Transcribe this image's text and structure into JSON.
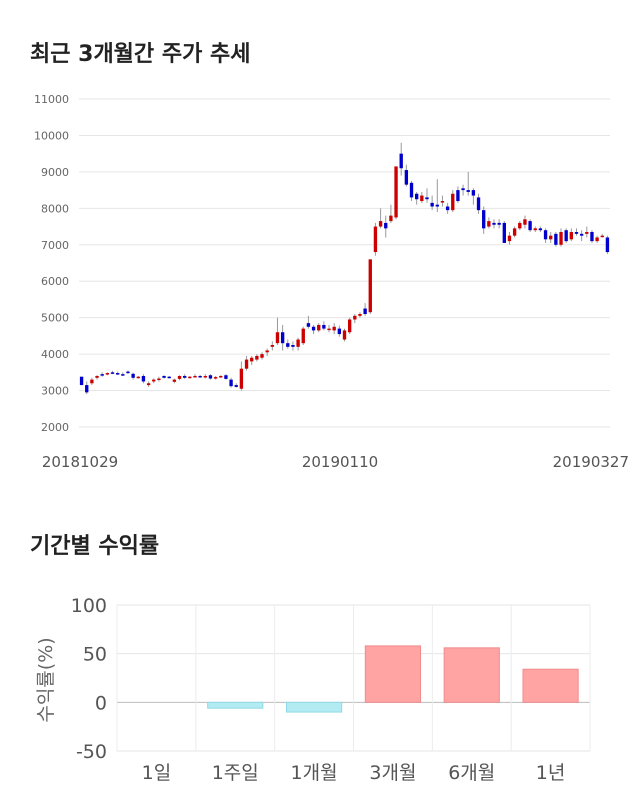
{
  "section1": {
    "title": "최근 3개월간 주가 추세"
  },
  "section2": {
    "title": "기간별 수익률"
  },
  "chart_data": [
    {
      "type": "candlestick",
      "title": "최근 3개월간 주가 추세",
      "ylim": [
        2000,
        11000
      ],
      "y_ticks": [
        11000,
        10000,
        9000,
        8000,
        7000,
        6000,
        5000,
        4000,
        3000,
        2000
      ],
      "x_tick_labels": [
        "20181029",
        "20190110",
        "20190327"
      ],
      "grid": true,
      "up_color": "#cc0000",
      "down_color": "#0000cc",
      "ohlc": [
        [
          3380,
          3380,
          3150,
          3150
        ],
        [
          3150,
          3250,
          2900,
          2950
        ],
        [
          3200,
          3350,
          3150,
          3300
        ],
        [
          3350,
          3420,
          3300,
          3400
        ],
        [
          3450,
          3500,
          3380,
          3420
        ],
        [
          3450,
          3500,
          3420,
          3480
        ],
        [
          3500,
          3540,
          3450,
          3470
        ],
        [
          3480,
          3520,
          3430,
          3450
        ],
        [
          3450,
          3500,
          3400,
          3430
        ],
        [
          3520,
          3550,
          3450,
          3480
        ],
        [
          3460,
          3490,
          3300,
          3350
        ],
        [
          3350,
          3400,
          3330,
          3380
        ],
        [
          3400,
          3450,
          3200,
          3250
        ],
        [
          3150,
          3250,
          3100,
          3200
        ],
        [
          3250,
          3330,
          3200,
          3300
        ],
        [
          3300,
          3380,
          3250,
          3330
        ],
        [
          3400,
          3420,
          3330,
          3350
        ],
        [
          3380,
          3400,
          3330,
          3360
        ],
        [
          3240,
          3330,
          3200,
          3300
        ],
        [
          3320,
          3420,
          3280,
          3400
        ],
        [
          3400,
          3450,
          3320,
          3350
        ],
        [
          3350,
          3400,
          3330,
          3380
        ],
        [
          3400,
          3450,
          3360,
          3400
        ],
        [
          3400,
          3430,
          3350,
          3380
        ],
        [
          3380,
          3450,
          3330,
          3400
        ],
        [
          3420,
          3450,
          3300,
          3330
        ],
        [
          3330,
          3400,
          3300,
          3370
        ],
        [
          3380,
          3420,
          3350,
          3400
        ],
        [
          3420,
          3450,
          3300,
          3320
        ],
        [
          3300,
          3350,
          3080,
          3120
        ],
        [
          3150,
          3200,
          3080,
          3100
        ],
        [
          3050,
          3800,
          3000,
          3600
        ],
        [
          3600,
          3950,
          3550,
          3850
        ],
        [
          3800,
          3950,
          3700,
          3900
        ],
        [
          3850,
          4000,
          3800,
          3950
        ],
        [
          3900,
          4050,
          3850,
          4000
        ],
        [
          4050,
          4150,
          3950,
          4100
        ],
        [
          4200,
          4350,
          4100,
          4250
        ],
        [
          4300,
          5000,
          4250,
          4600
        ],
        [
          4600,
          4800,
          4100,
          4300
        ],
        [
          4300,
          4400,
          4150,
          4200
        ],
        [
          4250,
          4350,
          4100,
          4200
        ],
        [
          4200,
          4450,
          4100,
          4400
        ],
        [
          4300,
          4750,
          4250,
          4700
        ],
        [
          4850,
          5050,
          4700,
          4750
        ],
        [
          4750,
          4800,
          4550,
          4650
        ],
        [
          4650,
          4850,
          4600,
          4800
        ],
        [
          4800,
          4900,
          4650,
          4700
        ],
        [
          4700,
          4800,
          4600,
          4700
        ],
        [
          4650,
          4850,
          4550,
          4750
        ],
        [
          4700,
          4780,
          4480,
          4550
        ],
        [
          4400,
          4700,
          4350,
          4650
        ],
        [
          4600,
          5000,
          4550,
          4950
        ],
        [
          4950,
          5100,
          4850,
          5050
        ],
        [
          5050,
          5150,
          5000,
          5100
        ],
        [
          5250,
          5400,
          5050,
          5100
        ],
        [
          5150,
          6600,
          5100,
          6600
        ],
        [
          6800,
          7600,
          6700,
          7500
        ],
        [
          7500,
          8000,
          7450,
          7650
        ],
        [
          7600,
          7800,
          7200,
          7450
        ],
        [
          7650,
          8100,
          7600,
          7800
        ],
        [
          7750,
          9150,
          7700,
          9150
        ],
        [
          9500,
          9800,
          8900,
          9100
        ],
        [
          9050,
          9200,
          8600,
          8650
        ],
        [
          8700,
          8750,
          8200,
          8300
        ],
        [
          8400,
          8450,
          8100,
          8250
        ],
        [
          8200,
          8450,
          8150,
          8350
        ],
        [
          8300,
          8550,
          8150,
          8250
        ],
        [
          8150,
          8350,
          7950,
          8050
        ],
        [
          8100,
          8800,
          7900,
          8050
        ],
        [
          8200,
          8350,
          8050,
          8200
        ],
        [
          8050,
          8150,
          7850,
          7950
        ],
        [
          7950,
          8500,
          7900,
          8400
        ],
        [
          8500,
          8600,
          8150,
          8200
        ],
        [
          8550,
          8650,
          8350,
          8500
        ],
        [
          8500,
          9000,
          8350,
          8450
        ],
        [
          8500,
          8550,
          8100,
          8350
        ],
        [
          8300,
          8400,
          7850,
          7950
        ],
        [
          7950,
          8050,
          7300,
          7450
        ],
        [
          7500,
          7750,
          7450,
          7650
        ],
        [
          7600,
          7700,
          7450,
          7550
        ],
        [
          7600,
          7700,
          7450,
          7550
        ],
        [
          7600,
          7650,
          7050,
          7050
        ],
        [
          7100,
          7350,
          7000,
          7250
        ],
        [
          7250,
          7500,
          7200,
          7450
        ],
        [
          7450,
          7650,
          7400,
          7600
        ],
        [
          7550,
          7800,
          7450,
          7700
        ],
        [
          7650,
          7700,
          7350,
          7400
        ],
        [
          7400,
          7500,
          7350,
          7450
        ],
        [
          7450,
          7500,
          7350,
          7400
        ],
        [
          7400,
          7450,
          7050,
          7150
        ],
        [
          7150,
          7350,
          7050,
          7250
        ],
        [
          7300,
          7350,
          6950,
          7000
        ],
        [
          7000,
          7450,
          6950,
          7350
        ],
        [
          7400,
          7450,
          7050,
          7100
        ],
        [
          7150,
          7450,
          7100,
          7350
        ],
        [
          7350,
          7450,
          7250,
          7300
        ],
        [
          7300,
          7400,
          7100,
          7250
        ],
        [
          7300,
          7500,
          7200,
          7350
        ],
        [
          7350,
          7400,
          7050,
          7100
        ],
        [
          7100,
          7250,
          7050,
          7200
        ],
        [
          7250,
          7300,
          7200,
          7250
        ],
        [
          7200,
          7250,
          6750,
          6800
        ]
      ]
    },
    {
      "type": "bar",
      "title": "기간별 수익률",
      "ylabel": "수익률(%)",
      "ylim": [
        -50,
        100
      ],
      "y_ticks": [
        100,
        50,
        0,
        -50
      ],
      "categories": [
        "1일",
        "1주일",
        "1개월",
        "3개월",
        "6개월",
        "1년"
      ],
      "values": [
        0,
        -6,
        -10,
        58,
        56,
        34
      ],
      "grid": true,
      "positive_color": "#ffa3a3",
      "negative_color": "#b3ebf2"
    }
  ]
}
